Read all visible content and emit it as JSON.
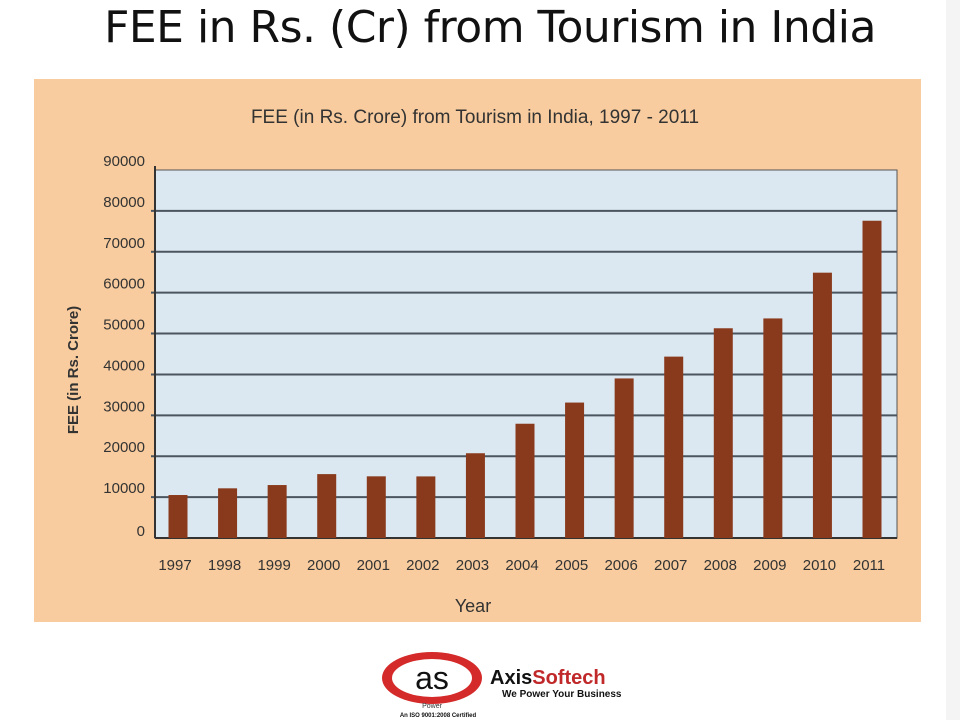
{
  "slide": {
    "title": "FEE in Rs. (Cr) from Tourism in India"
  },
  "chart_data": {
    "type": "bar",
    "title": "FEE (in Rs. Crore) from Tourism in India, 1997 - 2011",
    "xlabel": "Year",
    "ylabel": "FEE (in Rs. Crore)",
    "categories": [
      "1997",
      "1998",
      "1999",
      "2000",
      "2001",
      "2002",
      "2003",
      "2004",
      "2005",
      "2006",
      "2007",
      "2008",
      "2009",
      "2010",
      "2011"
    ],
    "values": [
      10511,
      12150,
      12951,
      15626,
      15083,
      15064,
      20729,
      27944,
      33123,
      39025,
      44360,
      51294,
      53700,
      64889,
      77591
    ],
    "ylim": [
      0,
      90000
    ],
    "yticks": [
      "0",
      "10000",
      "20000",
      "30000",
      "40000",
      "50000",
      "60000",
      "70000",
      "80000",
      "90000"
    ],
    "grid": true,
    "colors": {
      "bar": "#8a3a1c",
      "plot_bg": "#dce8f1",
      "panel_bg": "#f8cc9e"
    }
  },
  "logo": {
    "mark": "as",
    "name_1": "Axis",
    "name_2": "Softech",
    "tagline": "We Power Your Business",
    "sub": "Power",
    "cert": "An ISO 9001:2008 Certified"
  }
}
